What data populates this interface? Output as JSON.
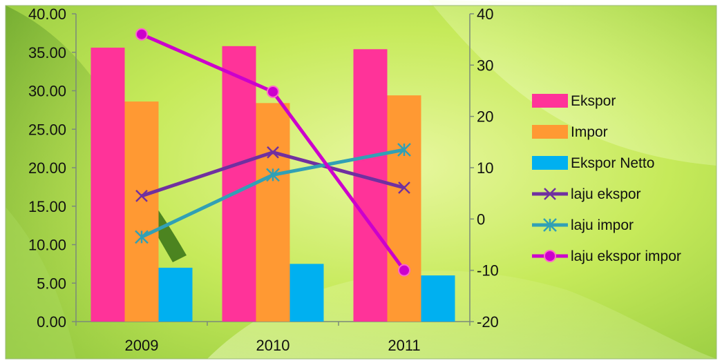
{
  "chart_data": {
    "type": "bar",
    "categories": [
      "2009",
      "2010",
      "2011"
    ],
    "bar_series": [
      {
        "name": "Ekspor",
        "values": [
          35.6,
          35.8,
          35.4
        ],
        "color": "#ff3399"
      },
      {
        "name": "Impor",
        "values": [
          28.6,
          28.4,
          29.4
        ],
        "color": "#ff9933"
      },
      {
        "name": "Ekspor Netto",
        "values": [
          7.0,
          7.5,
          6.0
        ],
        "color": "#00b0f0"
      }
    ],
    "line_series": [
      {
        "name": "laju ekspor",
        "values": [
          4.5,
          13.0,
          6.1
        ],
        "color": "#7030a0",
        "marker": "x"
      },
      {
        "name": "laju impor",
        "values": [
          -3.5,
          8.6,
          13.5
        ],
        "color": "#31a0b5",
        "marker": "star"
      },
      {
        "name": "laju ekspor impor",
        "values": [
          36.0,
          24.8,
          -10.0
        ],
        "color": "#cc00cc",
        "marker": "circle"
      }
    ],
    "left_axis": {
      "ylim": [
        0,
        40
      ],
      "ticks": [
        "0.00",
        "5.00",
        "10.00",
        "15.00",
        "20.00",
        "25.00",
        "30.00",
        "35.00",
        "40.00"
      ]
    },
    "right_axis": {
      "ylim": [
        -20,
        40
      ],
      "ticks": [
        "-20",
        "-10",
        "0",
        "10",
        "20",
        "30",
        "40"
      ]
    },
    "legend_position": "right",
    "grid": false
  }
}
